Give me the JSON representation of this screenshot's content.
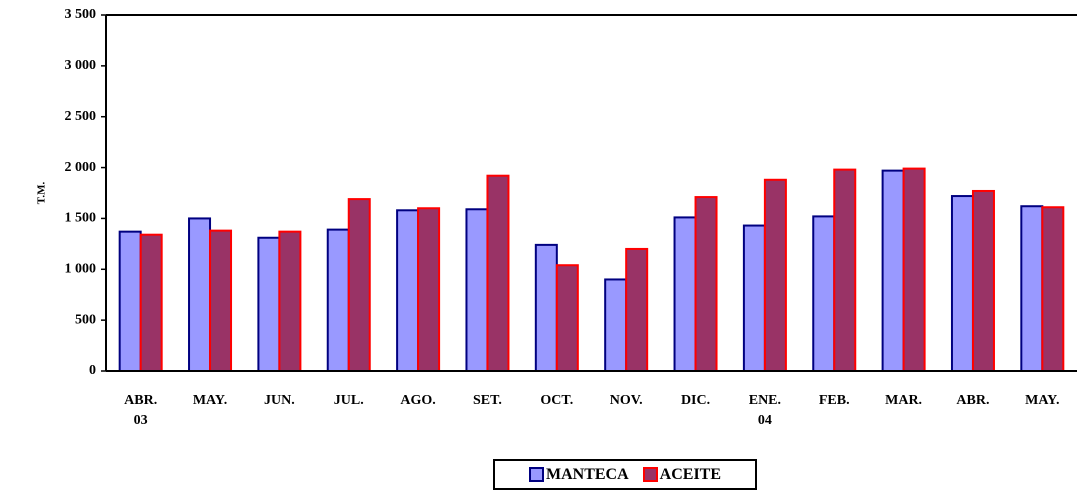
{
  "chart_data": {
    "type": "bar",
    "ylabel": "T.M.",
    "categories": [
      "ABR.\n03",
      "MAY.",
      "JUN.",
      "JUL.",
      "AGO.",
      "SET.",
      "OCT.",
      "NOV.",
      "DIC.",
      "ENE.\n04",
      "FEB.",
      "MAR.",
      "ABR.",
      "MAY."
    ],
    "series": [
      {
        "name": "MANTECA",
        "color": "#9999ff",
        "edge": "#000080",
        "values": [
          1370,
          1500,
          1310,
          1390,
          1580,
          1590,
          1240,
          900,
          1510,
          1430,
          1520,
          1970,
          1720,
          1620
        ]
      },
      {
        "name": "ACEITE",
        "color": "#993366",
        "edge": "#ff0000",
        "values": [
          1340,
          1380,
          1370,
          1690,
          1600,
          1920,
          1040,
          1200,
          1710,
          1880,
          1980,
          1990,
          1770,
          1610
        ]
      }
    ],
    "ylim": [
      0,
      3500
    ],
    "yticks": [
      0,
      500,
      {
        "value": 1000,
        "label": "1 000"
      },
      {
        "value": 1500,
        "label": "1 500"
      },
      {
        "value": 2000,
        "label": "2 000"
      },
      {
        "value": 2500,
        "label": "2 500"
      },
      {
        "value": 3000,
        "label": "3 000"
      },
      {
        "value": 3500,
        "label": "3 500"
      }
    ],
    "grid": false
  }
}
